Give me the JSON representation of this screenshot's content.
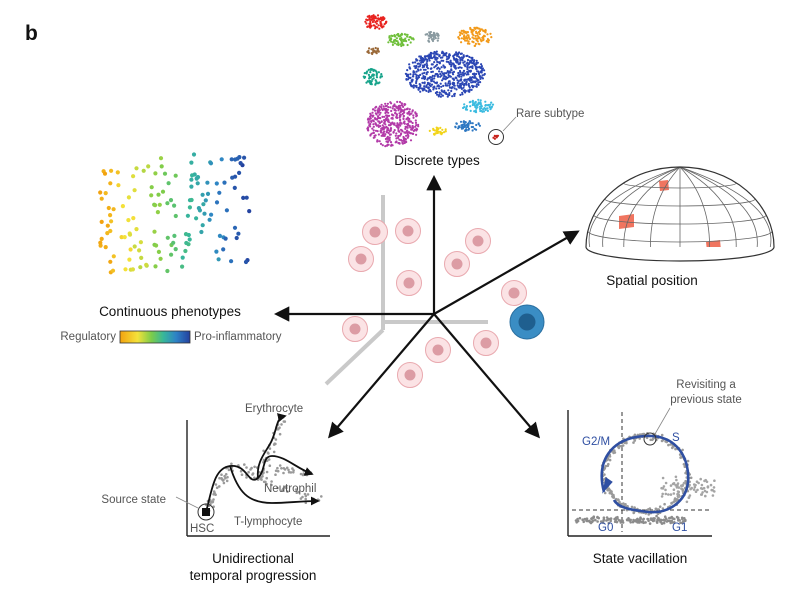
{
  "panel_letter": "b",
  "center_hub": {
    "caption": "",
    "cells": 11,
    "highlighted_cell_color": "#3a8dc4",
    "cell_color": "#f0b8bd"
  },
  "discrete": {
    "caption": "Discrete types",
    "rare_label": "Rare subtype",
    "cluster_colors": [
      "#e8231f",
      "#6fbf3a",
      "#8a9aa0",
      "#f29a1a",
      "#9b6a3a",
      "#2b46b4",
      "#16a38a",
      "#b23aa8",
      "#3bbbe0",
      "#f2d41a",
      "#2e78c2",
      "#c8211a"
    ]
  },
  "continuous": {
    "caption": "Continuous phenotypes",
    "scale_left": "Regulatory",
    "scale_right": "Pro-inflammatory",
    "gradient": [
      "#f2a20f",
      "#f4e23a",
      "#7ccc4a",
      "#37b79a",
      "#2e83c6",
      "#24409e"
    ]
  },
  "spatial": {
    "caption": "Spatial position",
    "highlight_color": "#f07560"
  },
  "temporal": {
    "caption_line1": "Unidirectional",
    "caption_line2": "temporal progression",
    "source_label": "Source state",
    "hsc_label": "HSC",
    "branches": [
      "Erythrocyte",
      "Neutrophil",
      "T-lymphocyte"
    ]
  },
  "vacillation": {
    "caption": "State vacillation",
    "revisit_line1": "Revisiting a",
    "revisit_line2": "previous state",
    "phases": [
      "G2/M",
      "S",
      "G0",
      "G1"
    ],
    "cycle_color": "#2f4fa2"
  }
}
